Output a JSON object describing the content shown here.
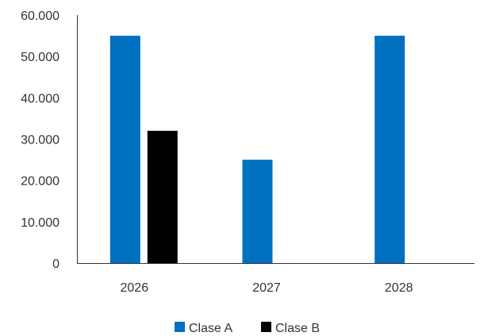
{
  "chart_data": {
    "type": "bar",
    "title": "",
    "xlabel": "",
    "ylabel": "",
    "categories": [
      "2026",
      "2027",
      "2028"
    ],
    "series": [
      {
        "name": "Clase A",
        "color": "#0070C0",
        "values": [
          55000,
          25000,
          55000
        ]
      },
      {
        "name": "Clase B",
        "color": "#000000",
        "values": [
          32000,
          null,
          null
        ]
      }
    ],
    "ylim": [
      0,
      60000
    ],
    "yticks": [
      0,
      10000,
      20000,
      30000,
      40000,
      50000,
      60000
    ],
    "ytick_labels": [
      "0",
      "10.000",
      "20.000",
      "30.000",
      "40.000",
      "50.000",
      "60.000"
    ],
    "grid": false,
    "legend": {
      "position": "bottom-center"
    }
  }
}
